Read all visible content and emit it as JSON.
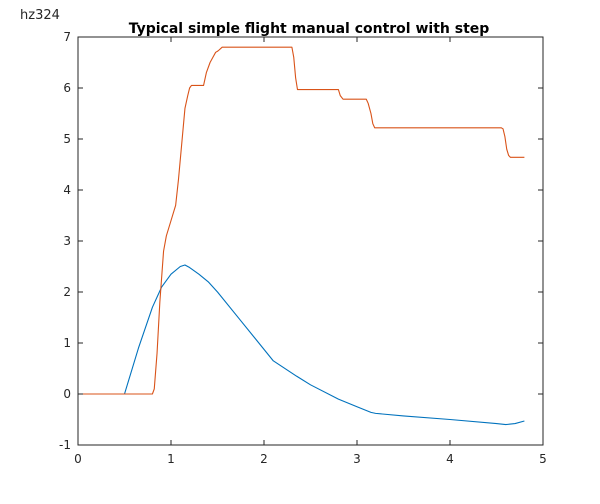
{
  "figure_label": "hz324",
  "chart_data": {
    "type": "line",
    "title": "Typical simple flight manual control with step",
    "xlabel": "",
    "ylabel": "",
    "xlim": [
      0,
      5
    ],
    "ylim": [
      -1,
      7
    ],
    "xticks": [
      0,
      1,
      2,
      3,
      4,
      5
    ],
    "yticks": [
      -1,
      0,
      1,
      2,
      3,
      4,
      5,
      6,
      7
    ],
    "grid": false,
    "legend": null,
    "series": [
      {
        "color": "#0072BD",
        "x": [
          0,
          0.47,
          0.5,
          0.65,
          0.8,
          0.9,
          1.0,
          1.1,
          1.15,
          1.2,
          1.3,
          1.4,
          1.5,
          1.7,
          1.9,
          2.1,
          2.35,
          2.5,
          2.8,
          3.0,
          3.15,
          3.2,
          3.5,
          4.0,
          4.5,
          4.6,
          4.7,
          4.8
        ],
        "y": [
          0,
          0,
          0,
          0.9,
          1.7,
          2.1,
          2.35,
          2.5,
          2.53,
          2.48,
          2.35,
          2.2,
          2.0,
          1.55,
          1.1,
          0.65,
          0.35,
          0.18,
          -0.1,
          -0.25,
          -0.36,
          -0.38,
          -0.43,
          -0.5,
          -0.58,
          -0.6,
          -0.58,
          -0.53
        ]
      },
      {
        "color": "#D95319",
        "x": [
          0,
          0.8,
          0.82,
          0.85,
          0.88,
          0.92,
          0.95,
          1.0,
          1.05,
          1.08,
          1.1,
          1.13,
          1.15,
          1.18,
          1.2,
          1.22,
          1.25,
          1.35,
          1.38,
          1.42,
          1.45,
          1.48,
          1.5,
          1.52,
          1.55,
          1.6,
          2.3,
          2.32,
          2.34,
          2.36,
          2.8,
          2.82,
          2.85,
          3.1,
          3.12,
          3.15,
          3.17,
          3.19,
          3.2,
          4.55,
          4.57,
          4.59,
          4.61,
          4.63,
          4.65,
          4.8
        ],
        "y": [
          0,
          0,
          0.1,
          0.8,
          1.8,
          2.8,
          3.1,
          3.4,
          3.7,
          4.2,
          4.6,
          5.2,
          5.6,
          5.85,
          6.0,
          6.05,
          6.05,
          6.05,
          6.3,
          6.5,
          6.6,
          6.7,
          6.72,
          6.75,
          6.8,
          6.8,
          6.8,
          6.6,
          6.2,
          5.97,
          5.97,
          5.85,
          5.78,
          5.78,
          5.7,
          5.5,
          5.3,
          5.22,
          5.22,
          5.22,
          5.2,
          5.05,
          4.8,
          4.68,
          4.64,
          4.64
        ]
      }
    ]
  }
}
